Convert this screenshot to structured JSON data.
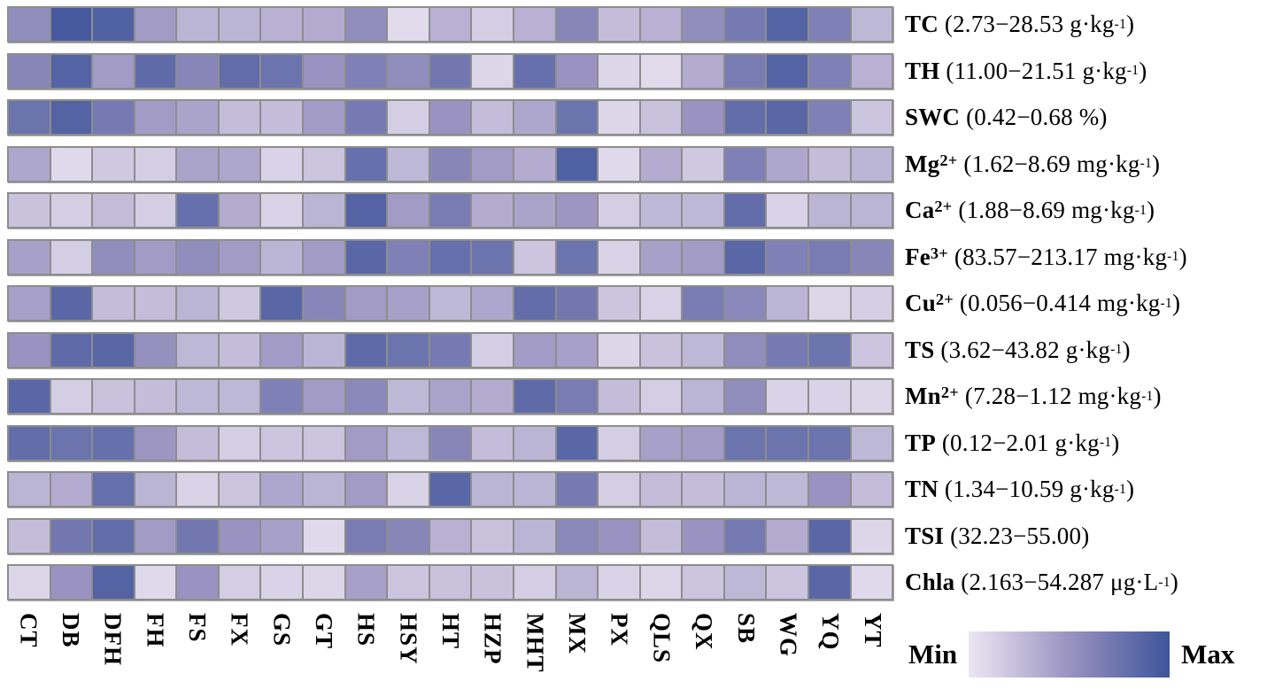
{
  "chart_data": {
    "type": "heatmap",
    "title": "",
    "columns": [
      "CT",
      "DB",
      "DFH",
      "FH",
      "FS",
      "FX",
      "GS",
      "GT",
      "HS",
      "HSY",
      "HT",
      "HZP",
      "MHT",
      "MX",
      "PX",
      "QLS",
      "QX",
      "SB",
      "WG",
      "YQ",
      "YT"
    ],
    "value_scale": "normalized relative intensity per row, 0 = Min, 1 = Max",
    "rows": [
      {
        "name": "TC",
        "name_sup": "",
        "range_prefix": "(2.73−28.53 g·kg",
        "range_sup": "-1",
        "range_suffix": ")",
        "values": [
          0.55,
          0.95,
          0.9,
          0.45,
          0.3,
          0.3,
          0.32,
          0.35,
          0.55,
          0.07,
          0.32,
          0.15,
          0.32,
          0.6,
          0.25,
          0.32,
          0.55,
          0.7,
          0.88,
          0.65,
          0.28
        ]
      },
      {
        "name": "TH",
        "name_sup": "",
        "range_prefix": "(11.00−21.51 g·kg",
        "range_sup": "-1",
        "range_suffix": ")",
        "values": [
          0.6,
          0.88,
          0.45,
          0.82,
          0.6,
          0.8,
          0.75,
          0.5,
          0.65,
          0.55,
          0.72,
          0.1,
          0.78,
          0.5,
          0.1,
          0.07,
          0.35,
          0.68,
          0.88,
          0.65,
          0.32
        ]
      },
      {
        "name": "SWC",
        "name_sup": "",
        "range_prefix": "(0.42−0.68 %)",
        "range_sup": "",
        "range_suffix": "",
        "values": [
          0.75,
          0.88,
          0.7,
          0.45,
          0.4,
          0.25,
          0.25,
          0.45,
          0.7,
          0.15,
          0.5,
          0.25,
          0.38,
          0.75,
          0.1,
          0.22,
          0.5,
          0.8,
          0.85,
          0.65,
          0.2
        ]
      },
      {
        "name": "Mg",
        "name_sup": "2+",
        "range_prefix": "(1.62−8.69 mg·kg",
        "range_sup": "-1",
        "range_suffix": ")",
        "values": [
          0.38,
          0.08,
          0.18,
          0.15,
          0.4,
          0.38,
          0.12,
          0.2,
          0.78,
          0.28,
          0.6,
          0.45,
          0.35,
          0.9,
          0.08,
          0.35,
          0.18,
          0.65,
          0.38,
          0.25,
          0.3
        ]
      },
      {
        "name": "Ca",
        "name_sup": "2+",
        "range_prefix": "(1.88−8.69 mg·kg",
        "range_sup": "-1",
        "range_suffix": ")",
        "values": [
          0.22,
          0.15,
          0.25,
          0.15,
          0.78,
          0.35,
          0.12,
          0.3,
          0.88,
          0.45,
          0.68,
          0.35,
          0.4,
          0.48,
          0.15,
          0.28,
          0.28,
          0.8,
          0.12,
          0.3,
          0.3
        ]
      },
      {
        "name": "Fe",
        "name_sup": "3+",
        "range_prefix": "(83.57−213.17 mg·kg",
        "range_sup": "-1",
        "range_suffix": ")",
        "values": [
          0.42,
          0.15,
          0.55,
          0.45,
          0.55,
          0.45,
          0.3,
          0.45,
          0.85,
          0.65,
          0.78,
          0.75,
          0.2,
          0.75,
          0.12,
          0.42,
          0.45,
          0.85,
          0.65,
          0.68,
          0.6
        ]
      },
      {
        "name": "Cu",
        "name_sup": "2+",
        "range_prefix": "(0.056−0.414 mg·kg",
        "range_sup": "-1",
        "range_suffix": ")",
        "values": [
          0.42,
          0.85,
          0.25,
          0.25,
          0.3,
          0.18,
          0.85,
          0.6,
          0.45,
          0.42,
          0.28,
          0.38,
          0.8,
          0.72,
          0.2,
          0.12,
          0.68,
          0.58,
          0.3,
          0.1,
          0.15
        ]
      },
      {
        "name": "TS",
        "name_sup": "",
        "range_prefix": "(3.62−43.82 g·kg",
        "range_sup": "-1",
        "range_suffix": ")",
        "values": [
          0.5,
          0.82,
          0.85,
          0.52,
          0.28,
          0.25,
          0.45,
          0.3,
          0.82,
          0.75,
          0.7,
          0.15,
          0.45,
          0.42,
          0.1,
          0.22,
          0.28,
          0.55,
          0.7,
          0.75,
          0.2
        ]
      },
      {
        "name": "Mn",
        "name_sup": "2+",
        "range_prefix": "(7.28−1.12 mg·kg",
        "range_sup": "-1",
        "range_suffix": ")",
        "values": [
          0.85,
          0.15,
          0.22,
          0.25,
          0.28,
          0.28,
          0.65,
          0.45,
          0.58,
          0.28,
          0.4,
          0.35,
          0.82,
          0.68,
          0.25,
          0.15,
          0.3,
          0.55,
          0.12,
          0.12,
          0.1
        ]
      },
      {
        "name": "TP",
        "name_sup": "",
        "range_prefix": "(0.12−2.01 g·kg",
        "range_sup": "-1",
        "range_suffix": ")",
        "values": [
          0.8,
          0.75,
          0.78,
          0.48,
          0.25,
          0.15,
          0.2,
          0.2,
          0.45,
          0.28,
          0.6,
          0.25,
          0.3,
          0.85,
          0.15,
          0.42,
          0.45,
          0.75,
          0.75,
          0.75,
          0.28
        ]
      },
      {
        "name": "TN",
        "name_sup": "",
        "range_prefix": "(1.34−10.59 g·kg",
        "range_sup": "-1",
        "range_suffix": ")",
        "values": [
          0.3,
          0.35,
          0.78,
          0.3,
          0.12,
          0.2,
          0.38,
          0.3,
          0.45,
          0.12,
          0.85,
          0.3,
          0.3,
          0.7,
          0.15,
          0.25,
          0.25,
          0.3,
          0.28,
          0.5,
          0.25
        ]
      },
      {
        "name": "TSI",
        "name_sup": "",
        "range_prefix": "(32.23−55.00)",
        "range_sup": "",
        "range_suffix": "",
        "values": [
          0.25,
          0.72,
          0.8,
          0.45,
          0.72,
          0.5,
          0.42,
          0.08,
          0.68,
          0.6,
          0.32,
          0.22,
          0.3,
          0.58,
          0.5,
          0.25,
          0.5,
          0.7,
          0.35,
          0.85,
          0.1
        ]
      },
      {
        "name": "Chla",
        "name_sup": "",
        "range_prefix": "(2.163−54.287 μg·L",
        "range_sup": "-1",
        "range_suffix": ")",
        "values": [
          0.1,
          0.5,
          0.88,
          0.08,
          0.5,
          0.15,
          0.12,
          0.1,
          0.42,
          0.2,
          0.22,
          0.22,
          0.15,
          0.3,
          0.12,
          0.1,
          0.2,
          0.28,
          0.2,
          0.85,
          0.08
        ]
      }
    ],
    "legend": {
      "min_label": "Min",
      "max_label": "Max",
      "position": "bottom-right"
    },
    "colors": {
      "min": "#ECE7F3",
      "mid": "#9A93C1",
      "max": "#3E549B",
      "cell_border": "#8d8d8d"
    },
    "layout": {
      "grid_lines": true,
      "column_labels_rotated_90deg": true
    }
  }
}
